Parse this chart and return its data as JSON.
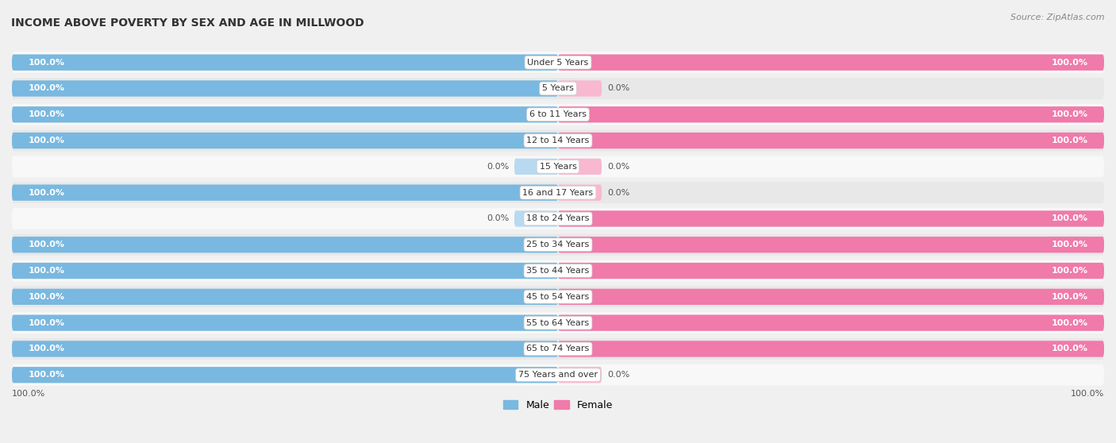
{
  "title": "INCOME ABOVE POVERTY BY SEX AND AGE IN MILLWOOD",
  "source": "Source: ZipAtlas.com",
  "categories": [
    "Under 5 Years",
    "5 Years",
    "6 to 11 Years",
    "12 to 14 Years",
    "15 Years",
    "16 and 17 Years",
    "18 to 24 Years",
    "25 to 34 Years",
    "35 to 44 Years",
    "45 to 54 Years",
    "55 to 64 Years",
    "65 to 74 Years",
    "75 Years and over"
  ],
  "male_values": [
    100.0,
    100.0,
    100.0,
    100.0,
    0.0,
    100.0,
    0.0,
    100.0,
    100.0,
    100.0,
    100.0,
    100.0,
    100.0
  ],
  "female_values": [
    100.0,
    0.0,
    100.0,
    100.0,
    0.0,
    0.0,
    100.0,
    100.0,
    100.0,
    100.0,
    100.0,
    100.0,
    0.0
  ],
  "male_color": "#79B8E0",
  "female_color": "#F07AAA",
  "male_color_light": "#B8D9F0",
  "female_color_light": "#F8B8D0",
  "male_label": "Male",
  "female_label": "Female",
  "bg_color": "#f0f0f0",
  "row_color_odd": "#e8e8e8",
  "row_color_even": "#f8f8f8",
  "title_fontsize": 10,
  "label_fontsize": 8,
  "bar_height": 0.62,
  "max_val": 100.0,
  "axis_label_left": "100.0%",
  "axis_label_right": "100.0%"
}
